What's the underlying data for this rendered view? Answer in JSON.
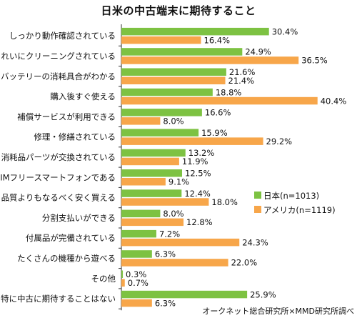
{
  "chart_data": {
    "type": "bar",
    "orientation": "horizontal",
    "title": "日米の中古端末に期待すること",
    "source": "オークネット総合研究所×MMD研究所調べ",
    "unit": "%",
    "legend_position": "middle-right",
    "grid": false,
    "xlim": [
      0,
      45
    ],
    "categories": [
      "しっかり動作確認されている",
      "きれいにクリーニングされている",
      "バッテリーの消耗具合がわかる",
      "購入後すぐ使える",
      "補償サービスが利用できる",
      "修理・修繕されている",
      "消耗品パーツが交換されている",
      "SIMフリースマートフォンである",
      "品質よりもなるべく安く買える",
      "分割支払いができる",
      "付属品が完備されている",
      "たくさんの機種から遊べる",
      "その他",
      "特に中古に期待することはない"
    ],
    "series": [
      {
        "name": "日本(n=1013)",
        "color": "#7dc242",
        "values": [
          30.4,
          24.9,
          21.6,
          18.8,
          16.6,
          15.9,
          13.2,
          12.5,
          12.4,
          8.0,
          7.2,
          6.3,
          0.3,
          25.9
        ],
        "labels": [
          "30.4%",
          "24.9%",
          "21.6%",
          "18.8%",
          "16.6%",
          "15.9%",
          "13.2%",
          "12.5%",
          "12.4%",
          "8.0%",
          "7.2%",
          "6.3%",
          "0.3%",
          "25.9%"
        ]
      },
      {
        "name": "アメリカ(n=1119)",
        "color": "#f7a64a",
        "values": [
          16.4,
          36.5,
          21.4,
          40.4,
          8.0,
          29.2,
          11.9,
          9.1,
          18.0,
          12.8,
          24.3,
          22.0,
          0.7,
          6.3
        ],
        "labels": [
          "16.4%",
          "36.5%",
          "21.4%",
          "40.4%",
          "8.0%",
          "29.2%",
          "11.9%",
          "9.1%",
          "18.0%",
          "12.8%",
          "24.3%",
          "22.0%",
          "0.7%",
          "6.3%"
        ]
      }
    ]
  }
}
